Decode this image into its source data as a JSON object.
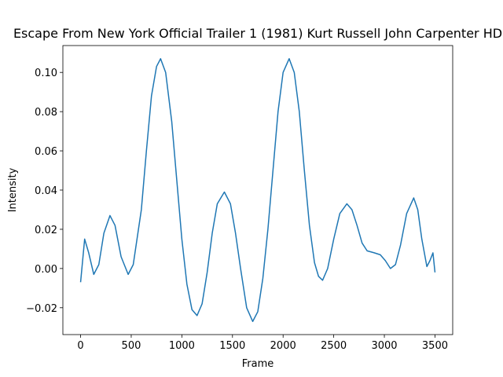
{
  "chart_data": {
    "type": "line",
    "title": "Escape From New York Official Trailer 1 (1981) Kurt Russell John Carpenter HD",
    "x_label": "Frame",
    "y_label": "Intensity",
    "x": [
      0,
      40,
      80,
      130,
      180,
      230,
      290,
      340,
      400,
      470,
      520,
      600,
      650,
      700,
      750,
      790,
      840,
      900,
      950,
      1000,
      1050,
      1100,
      1150,
      1200,
      1250,
      1300,
      1350,
      1420,
      1480,
      1530,
      1580,
      1640,
      1700,
      1750,
      1800,
      1850,
      1900,
      1950,
      2000,
      2060,
      2110,
      2160,
      2210,
      2260,
      2310,
      2350,
      2390,
      2440,
      2500,
      2560,
      2630,
      2680,
      2730,
      2780,
      2830,
      2900,
      2960,
      3010,
      3060,
      3110,
      3160,
      3220,
      3290,
      3330,
      3370,
      3420,
      3450,
      3480,
      3500
    ],
    "series": [
      {
        "color": "#1f77b4",
        "values": [
          -0.007,
          0.015,
          0.008,
          -0.003,
          0.002,
          0.018,
          0.027,
          0.022,
          0.006,
          -0.003,
          0.002,
          0.03,
          0.06,
          0.088,
          0.103,
          0.107,
          0.1,
          0.075,
          0.045,
          0.015,
          -0.008,
          -0.021,
          -0.024,
          -0.018,
          -0.002,
          0.018,
          0.033,
          0.039,
          0.033,
          0.018,
          0.0,
          -0.02,
          -0.027,
          -0.022,
          -0.005,
          0.02,
          0.05,
          0.08,
          0.1,
          0.107,
          0.1,
          0.08,
          0.05,
          0.022,
          0.003,
          -0.004,
          -0.006,
          0.0,
          0.015,
          0.028,
          0.033,
          0.03,
          0.022,
          0.013,
          0.009,
          0.008,
          0.007,
          0.004,
          0.0,
          0.002,
          0.012,
          0.028,
          0.036,
          0.03,
          0.015,
          0.001,
          0.004,
          0.008,
          -0.002
        ]
      }
    ],
    "xlim": [
      -175,
      3675
    ],
    "ylim": [
      -0.0337,
      0.1137
    ],
    "xticks": [
      0,
      500,
      1000,
      1500,
      2000,
      2500,
      3000,
      3500
    ],
    "yticks": [
      {
        "value": -0.02,
        "label": "−0.02"
      },
      {
        "value": 0,
        "label": "0.00"
      },
      {
        "value": 0.02,
        "label": "0.02"
      },
      {
        "value": 0.04,
        "label": "0.04"
      },
      {
        "value": 0.06,
        "label": "0.06"
      },
      {
        "value": 0.08,
        "label": "0.08"
      },
      {
        "value": 0.1,
        "label": "0.10"
      }
    ]
  }
}
